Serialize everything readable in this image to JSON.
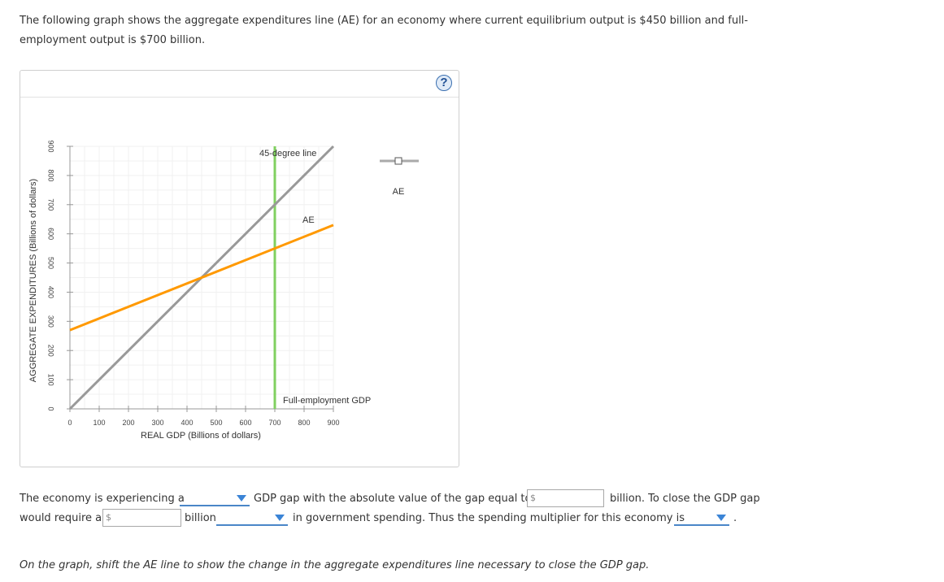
{
  "intro": {
    "line1": "The following graph shows the aggregate expenditures line (AE) for an economy where current equilibrium output is $450 billion and full-",
    "line2": "employment output is $700 billion."
  },
  "help_label": "?",
  "chart_data": {
    "type": "line",
    "xlabel": "REAL GDP (Billions of dollars)",
    "ylabel": "AGGREGATE EXPENDITURES (Billions of dollars)",
    "xlim": [
      0,
      900
    ],
    "ylim": [
      0,
      900
    ],
    "x_ticks": [
      0,
      100,
      200,
      300,
      400,
      500,
      600,
      700,
      800,
      900
    ],
    "y_ticks": [
      0,
      100,
      200,
      300,
      400,
      500,
      600,
      700,
      800,
      900
    ],
    "grid": true,
    "series": [
      {
        "name": "45-degree line",
        "color": "#999999",
        "points": [
          [
            0,
            0
          ],
          [
            900,
            900
          ]
        ]
      },
      {
        "name": "AE",
        "color": "#ff9900",
        "points": [
          [
            0,
            270
          ],
          [
            900,
            630
          ]
        ]
      }
    ],
    "vline": {
      "name": "Full-employment GDP",
      "x": 700,
      "y_top": 900,
      "color": "#80d060"
    },
    "legend": {
      "label": "AE",
      "position": "right"
    }
  },
  "question": {
    "part1": "The economy is experiencing a",
    "part2": "GDP gap with the absolute value of the gap equal to",
    "part3": "billion. To close the GDP gap",
    "part4": "would require a",
    "part5": "billion",
    "part6": "in government spending. Thus the spending multiplier for this economy is",
    "part7": ".",
    "currency": "$",
    "gap_type_selected": "",
    "gap_value": "",
    "change_value": "",
    "change_type_selected": "",
    "multiplier_selected": ""
  },
  "instruction": "On the graph, shift the AE line to show the change in the aggregate expenditures line necessary to close the GDP gap."
}
